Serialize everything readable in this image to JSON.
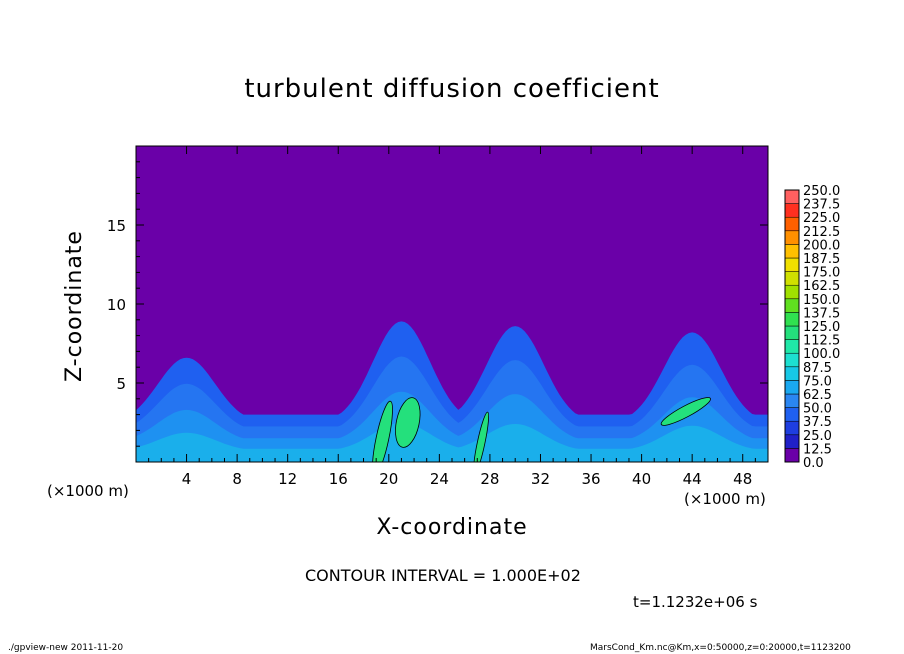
{
  "chart_data": {
    "type": "heatmap",
    "title": "turbulent diffusion coefficient",
    "xlabel": "X-coordinate",
    "ylabel": "Z-coordinate",
    "x_unit_label": "(×1000 m)",
    "x_ticks": [
      4,
      8,
      12,
      16,
      20,
      24,
      28,
      32,
      36,
      40,
      44,
      48
    ],
    "y_ticks": [
      5,
      10,
      15
    ],
    "xlim": [
      0,
      50
    ],
    "ylim": [
      0,
      20
    ],
    "colorbar": {
      "levels": [
        "0.0",
        "12.5",
        "25.0",
        "37.5",
        "50.0",
        "62.5",
        "75.0",
        "87.5",
        "100.0",
        "112.5",
        "125.0",
        "137.5",
        "150.0",
        "162.5",
        "175.0",
        "187.5",
        "200.0",
        "212.5",
        "225.0",
        "237.5",
        "250.0"
      ],
      "colors": [
        "#6a00a8",
        "#2020c8",
        "#1e3ee0",
        "#1f60f0",
        "#2a86f2",
        "#1aa8f0",
        "#17c8e6",
        "#1de0d0",
        "#20e8a8",
        "#24e07c",
        "#30e050",
        "#60e020",
        "#a0e000",
        "#d0e000",
        "#f0e000",
        "#ffc000",
        "#ff9000",
        "#ff6000",
        "#ff3020",
        "#ff6060",
        "#ff9a9a"
      ],
      "background": "#6a00a8"
    },
    "ridges": [
      {
        "x_center": 4,
        "height": 4.2
      },
      {
        "x_center": 21,
        "height": 6.5
      },
      {
        "x_center": 30,
        "height": 6.2
      },
      {
        "x_center": 44,
        "height": 5.8
      }
    ],
    "contour_interval": "CONTOUR INTERVAL = 1.000E+02",
    "time": "t=1.1232e+06 s"
  },
  "footer": {
    "left": "./gpview-new  2011-11-20",
    "right": "MarsCond_Km.nc@Km,x=0:50000,z=0:20000,t=1123200"
  }
}
